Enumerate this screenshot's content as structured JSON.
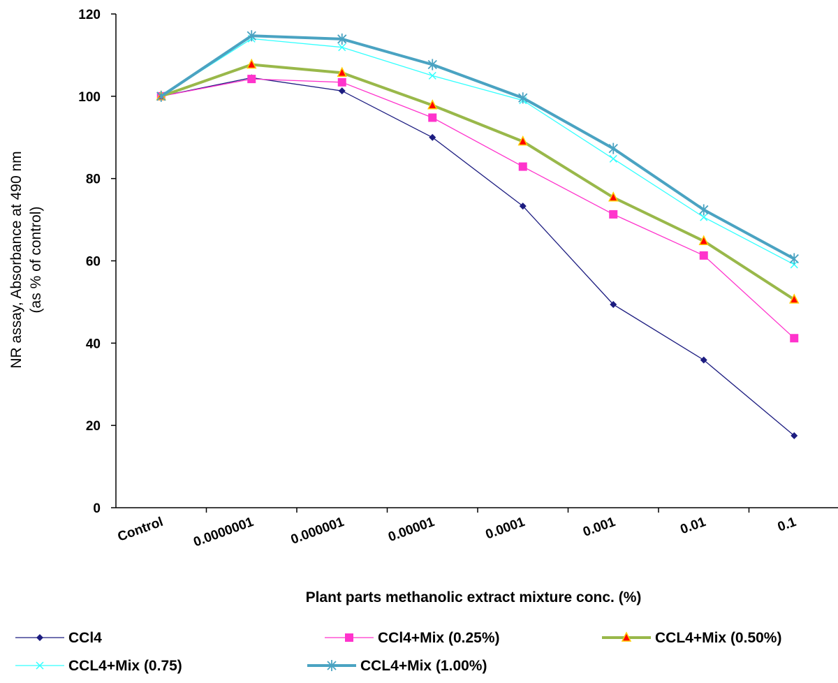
{
  "chart_data": {
    "type": "line",
    "title": "",
    "xlabel": "Plant parts methanolic  extract mixture conc. (%)",
    "ylabel": [
      "NR assay, Absorbance  at 490 nm",
      "(as % of control)"
    ],
    "categories": [
      "Control",
      "0.0000001",
      "0.000001",
      "0.00001",
      "0.0001",
      "0.001",
      "0.01",
      "0.1"
    ],
    "ylim": [
      0,
      120
    ],
    "yticks": [
      0,
      20,
      40,
      60,
      80,
      100,
      120
    ],
    "grid": false,
    "legend_position": "bottom",
    "series": [
      {
        "name": "CCl4",
        "color": "#1c1c80",
        "marker": "diamond",
        "values": [
          100,
          104.5,
          101.3,
          90,
          73.3,
          49.4,
          35.9,
          17.5
        ]
      },
      {
        "name": "CCl4+Mix (0.25%)",
        "color": "#ff33cc",
        "marker": "square",
        "values": [
          100,
          104.2,
          103.4,
          94.8,
          82.9,
          71.3,
          61.3,
          41.2
        ]
      },
      {
        "name": "CCL4+Mix (0.50%)",
        "color": "#99b84a",
        "marker": "triangle",
        "values": [
          100,
          107.7,
          105.7,
          97.8,
          89,
          75.4,
          64.8,
          50.6
        ]
      },
      {
        "name": "CCL4+Mix (0.75)",
        "color": "#33ffff",
        "marker": "x",
        "values": [
          100,
          114,
          111.9,
          105,
          99,
          84.8,
          70.6,
          59.1
        ]
      },
      {
        "name": "CCL4+Mix (1.00%)",
        "color": "#4aa3c2",
        "marker": "star",
        "values": [
          100,
          114.7,
          113.9,
          107.7,
          99.6,
          87.3,
          72.4,
          60.5
        ]
      }
    ]
  }
}
